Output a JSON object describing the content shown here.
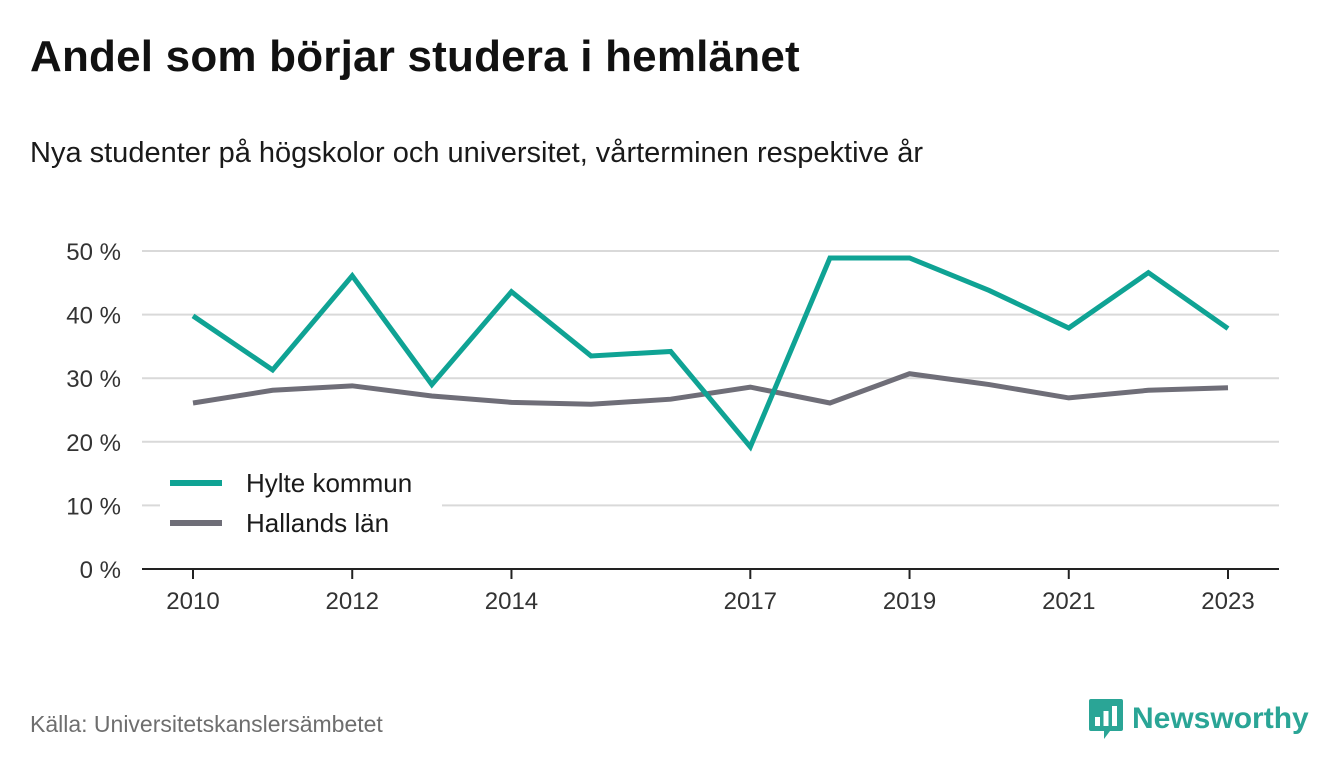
{
  "header": {
    "title": "Andel som börjar studera i hemlänet",
    "subtitle": "Nya studenter på högskolor och universitet, vårterminen respektive år"
  },
  "footer": {
    "source": "Källa: Universitetskanslersämbetet",
    "brand": "Newsworthy",
    "brand_icon": "newsworthy-chart-icon"
  },
  "colors": {
    "hylte": "#0fa394",
    "halland": "#6f6e78",
    "grid": "#d9d9d9",
    "axis": "#222222",
    "brand": "#2aa596"
  },
  "chart_data": {
    "type": "line",
    "title": "Andel som börjar studera i hemlänet",
    "subtitle": "Nya studenter på högskolor och universitet, vårterminen respektive år",
    "x": [
      2010,
      2011,
      2012,
      2013,
      2014,
      2015,
      2016,
      2017,
      2018,
      2019,
      2020,
      2021,
      2022,
      2023
    ],
    "xticks": [
      "2010",
      "2012",
      "2014",
      "2017",
      "2019",
      "2021",
      "2023"
    ],
    "yticks": [
      "0 %",
      "10 %",
      "20 %",
      "30 %",
      "40 %",
      "50 %"
    ],
    "ylim": [
      0,
      50
    ],
    "grid": true,
    "legend": "bottom-left",
    "series": [
      {
        "name": "Hylte kommun",
        "color": "#0fa394",
        "values": [
          39.8,
          31.3,
          46.1,
          29.0,
          43.6,
          33.5,
          34.2,
          19.2,
          48.9,
          48.9,
          43.8,
          37.9,
          46.6,
          37.8
        ]
      },
      {
        "name": "Hallands län",
        "color": "#6f6e78",
        "values": [
          26.1,
          28.1,
          28.8,
          27.2,
          26.2,
          25.9,
          26.7,
          28.6,
          26.1,
          30.7,
          29.0,
          26.9,
          28.1,
          28.5
        ]
      }
    ]
  }
}
